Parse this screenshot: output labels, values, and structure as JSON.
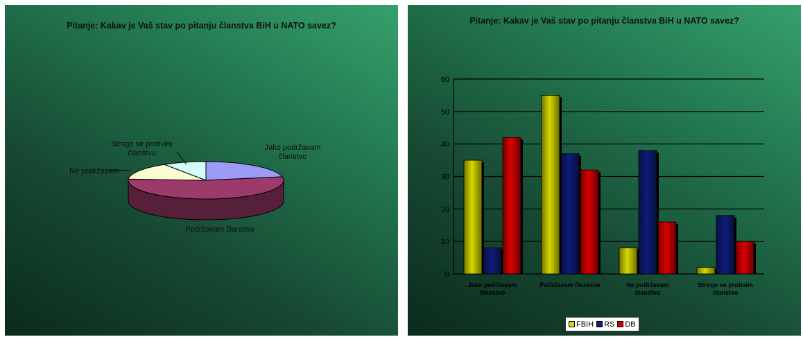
{
  "chart_data": [
    {
      "type": "pie",
      "title": "Pitanje: Kakav je Vaš stav po pitanju članstva BiH u NATO savez?",
      "slices": [
        {
          "label": "Jako podržavam članstvo",
          "value": 22,
          "color": "#9c9cf7"
        },
        {
          "label": "Podržavam članstvo",
          "value": 54,
          "color": "#9c3a6c"
        },
        {
          "label": "Ne podržavam",
          "value": 15,
          "color": "#fbfbd0"
        },
        {
          "label": "Strogo se protivim članstvu",
          "value": 9,
          "color": "#d4fbfb"
        }
      ]
    },
    {
      "type": "bar",
      "title": "Pitanje: Kakav je Vaš stav po pitanju članstva BiH u NATO savez?",
      "categories": [
        "Jako podržavam članstvo",
        "Podržavam članstvo",
        "Ne podržavam članstvo",
        "Strogo se protivim članstvu"
      ],
      "series": [
        {
          "name": "FBIH",
          "values": [
            35,
            55,
            8,
            2
          ],
          "color": "#d8d800"
        },
        {
          "name": "RS",
          "values": [
            8,
            37,
            38,
            18
          ],
          "color": "#0e1d7a"
        },
        {
          "name": "DB",
          "values": [
            42,
            32,
            16,
            10
          ],
          "color": "#d80000"
        }
      ],
      "ylim": [
        0,
        60
      ],
      "yticks": [
        0,
        10,
        20,
        30,
        40,
        50,
        60
      ],
      "legend": "bottom",
      "grid": true
    }
  ]
}
